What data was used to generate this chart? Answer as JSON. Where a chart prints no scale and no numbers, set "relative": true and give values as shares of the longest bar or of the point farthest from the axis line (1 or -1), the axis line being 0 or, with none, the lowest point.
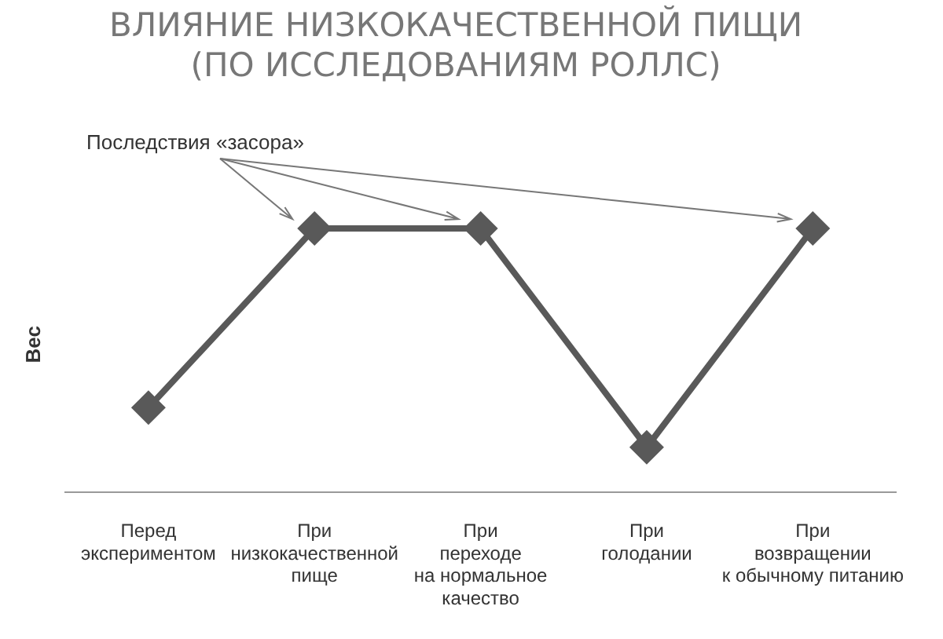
{
  "chart_data": {
    "type": "line",
    "title": "ВЛИЯНИЕ НИЗКОКАЧЕСТВЕННОЙ ПИЩИ\n(ПО ИССЛЕДОВАНИЯМ РОЛЛС)",
    "ylabel": "Вес",
    "categories": [
      "Перед\nэкспериментом",
      "При\nнизкокачественной\nпище",
      "При\nпереходе\nна нормальное\nкачество",
      "При\nголодании",
      "При\nвозвращении\nк обычному питанию"
    ],
    "values": [
      0.32,
      1,
      1,
      0.17,
      1
    ],
    "color": "#595959",
    "relative": true,
    "marker": "diamond",
    "line_style": "solid",
    "grid": false,
    "legend": false,
    "annotations": [
      "Последствия «засора»"
    ]
  }
}
